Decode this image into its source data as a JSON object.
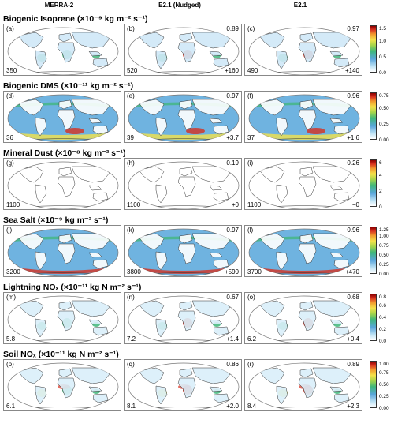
{
  "columns": [
    "MERRA-2",
    "E2.1 (Nudged)",
    "E2.1"
  ],
  "rows": [
    {
      "title": "Biogenic Isoprene",
      "unit": "(×10⁻⁹ kg m⁻² s⁻¹)",
      "panels": [
        {
          "label": "(a)",
          "value": "350",
          "corr": "",
          "diff": ""
        },
        {
          "label": "(b)",
          "value": "520",
          "corr": "0.89",
          "diff": "+160"
        },
        {
          "label": "(c)",
          "value": "490",
          "corr": "0.97",
          "diff": "+140"
        }
      ],
      "ticks": [
        "1.5",
        "1.0",
        "0.5",
        "0.0"
      ]
    },
    {
      "title": "Biogenic DMS",
      "unit": "(×10⁻¹¹ kg m⁻² s⁻¹)",
      "panels": [
        {
          "label": "(d)",
          "value": "36",
          "corr": "",
          "diff": ""
        },
        {
          "label": "(e)",
          "value": "39",
          "corr": "0.97",
          "diff": "+3.7"
        },
        {
          "label": "(f)",
          "value": "37",
          "corr": "0.96",
          "diff": "+1.6"
        }
      ],
      "ticks": [
        "0.75",
        "0.50",
        "0.25",
        "0.00"
      ]
    },
    {
      "title": "Mineral Dust",
      "unit": "(×10⁻⁸ kg m⁻² s⁻¹)",
      "panels": [
        {
          "label": "(g)",
          "value": "1100",
          "corr": "",
          "diff": ""
        },
        {
          "label": "(h)",
          "value": "1100",
          "corr": "0.19",
          "diff": "+0"
        },
        {
          "label": "(i)",
          "value": "1100",
          "corr": "0.26",
          "diff": "−0"
        }
      ],
      "ticks": [
        "6",
        "4",
        "2",
        "0"
      ]
    },
    {
      "title": "Sea Salt",
      "unit": "(×10⁻⁹ kg m⁻² s⁻¹)",
      "panels": [
        {
          "label": "(j)",
          "value": "3200",
          "corr": "",
          "diff": ""
        },
        {
          "label": "(k)",
          "value": "3800",
          "corr": "0.97",
          "diff": "+590"
        },
        {
          "label": "(l)",
          "value": "3700",
          "corr": "0.96",
          "diff": "+470"
        }
      ],
      "ticks": [
        "1.25",
        "1.00",
        "0.75",
        "0.50",
        "0.25",
        "0.00"
      ]
    },
    {
      "title": "Lightning NOₓ",
      "unit": "(×10⁻¹¹ kg N m⁻² s⁻¹)",
      "panels": [
        {
          "label": "(m)",
          "value": "5.8",
          "corr": "",
          "diff": ""
        },
        {
          "label": "(n)",
          "value": "7.2",
          "corr": "0.67",
          "diff": "+1.4"
        },
        {
          "label": "(o)",
          "value": "6.2",
          "corr": "0.68",
          "diff": "+0.4"
        }
      ],
      "ticks": [
        "0.8",
        "0.6",
        "0.4",
        "0.2",
        "0.0"
      ]
    },
    {
      "title": "Soil NOₓ",
      "unit": "(×10⁻¹¹ kg N m⁻² s⁻¹)",
      "panels": [
        {
          "label": "(p)",
          "value": "6.1",
          "corr": "",
          "diff": ""
        },
        {
          "label": "(q)",
          "value": "8.1",
          "corr": "0.86",
          "diff": "+2.0"
        },
        {
          "label": "(r)",
          "value": "8.4",
          "corr": "0.89",
          "diff": "+2.3"
        }
      ],
      "ticks": [
        "1.00",
        "0.75",
        "0.50",
        "0.25",
        "0.00"
      ]
    }
  ],
  "colors": {
    "ocean_fill": [
      "#ffffff",
      "#6fb3e0",
      "#ffffff",
      "#6fb3e0",
      "#ffffff",
      "#ffffff"
    ],
    "land_fill": [
      "#cfe8f7",
      "#ffffff",
      "#ffffff",
      "#ffffff",
      "#d9eefa",
      "#d9eefa"
    ],
    "hotspot": "#d7301f",
    "mid": "#f4e24a"
  }
}
